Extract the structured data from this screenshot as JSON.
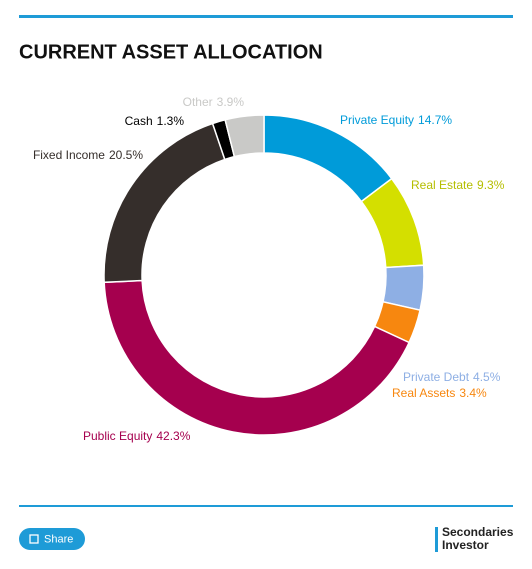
{
  "chart_data": {
    "type": "donut",
    "title": "CURRENT ASSET ALLOCATION",
    "categories": [
      "Private Equity",
      "Real Estate",
      "Private Debt",
      "Real Assets",
      "Public Equity",
      "Fixed Income",
      "Cash",
      "Other"
    ],
    "values": [
      14.7,
      9.3,
      4.5,
      3.4,
      42.3,
      20.5,
      1.3,
      3.9
    ],
    "value_labels": [
      "14.7%",
      "9.3%",
      "4.5%",
      "3.4%",
      "42.3%",
      "20.5%",
      "1.3%",
      "3.9%"
    ],
    "colors": [
      "#009bd9",
      "#d4df00",
      "#8eafe4",
      "#f7870f",
      "#a5004e",
      "#352e2b",
      "#000000",
      "#c9c9c7"
    ]
  },
  "button_label": "Share",
  "brand": [
    "Secondaries",
    "Investor"
  ]
}
